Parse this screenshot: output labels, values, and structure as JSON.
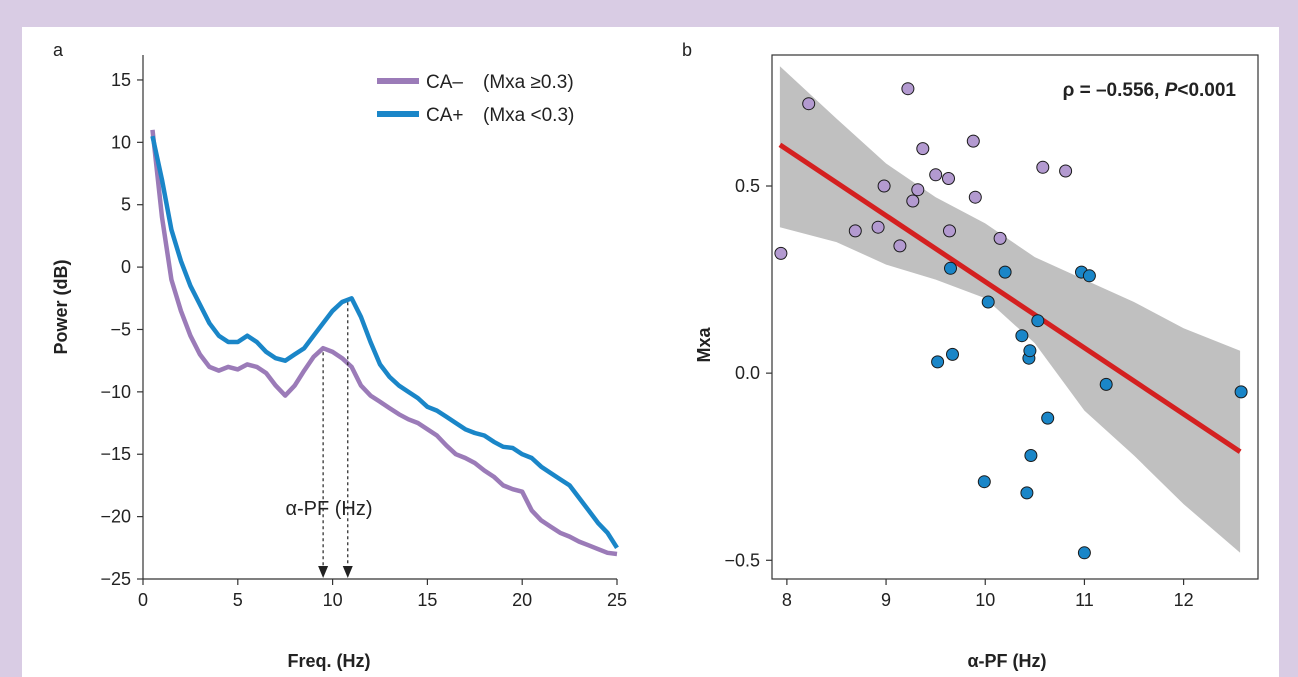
{
  "panel_labels": {
    "a": "a",
    "b": "b"
  },
  "chart_data": [
    {
      "type": "line",
      "xlabel": "Freq. (Hz)",
      "ylabel": "Power (dB)",
      "xlim": [
        0,
        25
      ],
      "ylim": [
        -25,
        17
      ],
      "x_ticks": [
        "0",
        "5",
        "10",
        "15",
        "20",
        "25"
      ],
      "y_ticks": [
        "15",
        "10",
        "5",
        "0",
        "−5",
        "−10",
        "−15",
        "−20",
        "−25"
      ],
      "legend_position": "top-right",
      "annotation": "α-PF (Hz)",
      "peak_markers_x": [
        9.5,
        10.8
      ],
      "series": [
        {
          "name": "CA–",
          "legend_note": "(Mxa ≥0.3)",
          "color": "#9b7bb8",
          "points": [
            [
              0.5,
              11
            ],
            [
              1,
              4
            ],
            [
              1.5,
              -1
            ],
            [
              2,
              -3.5
            ],
            [
              2.5,
              -5.5
            ],
            [
              3,
              -7
            ],
            [
              3.5,
              -8
            ],
            [
              4,
              -8.3
            ],
            [
              4.5,
              -8
            ],
            [
              5,
              -8.2
            ],
            [
              5.5,
              -7.8
            ],
            [
              6,
              -8
            ],
            [
              6.5,
              -8.5
            ],
            [
              7,
              -9.5
            ],
            [
              7.5,
              -10.3
            ],
            [
              8,
              -9.5
            ],
            [
              8.5,
              -8.3
            ],
            [
              9,
              -7.2
            ],
            [
              9.5,
              -6.5
            ],
            [
              10,
              -6.8
            ],
            [
              10.5,
              -7.3
            ],
            [
              11,
              -8
            ],
            [
              11.5,
              -9.5
            ],
            [
              12,
              -10.3
            ],
            [
              12.5,
              -10.8
            ],
            [
              13,
              -11.3
            ],
            [
              13.5,
              -11.8
            ],
            [
              14,
              -12.2
            ],
            [
              14.5,
              -12.5
            ],
            [
              15,
              -13
            ],
            [
              15.5,
              -13.5
            ],
            [
              16,
              -14.3
            ],
            [
              16.5,
              -15
            ],
            [
              17,
              -15.3
            ],
            [
              17.5,
              -15.7
            ],
            [
              18,
              -16.3
            ],
            [
              18.5,
              -16.8
            ],
            [
              19,
              -17.5
            ],
            [
              19.5,
              -17.8
            ],
            [
              20,
              -18
            ],
            [
              20.5,
              -19.5
            ],
            [
              21,
              -20.3
            ],
            [
              21.5,
              -20.8
            ],
            [
              22,
              -21.3
            ],
            [
              22.5,
              -21.6
            ],
            [
              23,
              -22
            ],
            [
              23.5,
              -22.3
            ],
            [
              24,
              -22.6
            ],
            [
              24.5,
              -22.9
            ],
            [
              25,
              -23
            ]
          ]
        },
        {
          "name": "CA+",
          "legend_note": "(Mxa <0.3)",
          "color": "#1a86c8",
          "points": [
            [
              0.5,
              10.5
            ],
            [
              1,
              7
            ],
            [
              1.5,
              3
            ],
            [
              2,
              0.5
            ],
            [
              2.5,
              -1.5
            ],
            [
              3,
              -3
            ],
            [
              3.5,
              -4.5
            ],
            [
              4,
              -5.5
            ],
            [
              4.5,
              -6
            ],
            [
              5,
              -6
            ],
            [
              5.5,
              -5.5
            ],
            [
              6,
              -6
            ],
            [
              6.5,
              -6.8
            ],
            [
              7,
              -7.3
            ],
            [
              7.5,
              -7.5
            ],
            [
              8,
              -7
            ],
            [
              8.5,
              -6.5
            ],
            [
              9,
              -5.5
            ],
            [
              9.5,
              -4.5
            ],
            [
              10,
              -3.5
            ],
            [
              10.5,
              -2.8
            ],
            [
              11,
              -2.5
            ],
            [
              11.5,
              -4
            ],
            [
              12,
              -6
            ],
            [
              12.5,
              -7.8
            ],
            [
              13,
              -8.8
            ],
            [
              13.5,
              -9.5
            ],
            [
              14,
              -10
            ],
            [
              14.5,
              -10.5
            ],
            [
              15,
              -11.2
            ],
            [
              15.5,
              -11.5
            ],
            [
              16,
              -12
            ],
            [
              16.5,
              -12.5
            ],
            [
              17,
              -13
            ],
            [
              17.5,
              -13.3
            ],
            [
              18,
              -13.5
            ],
            [
              18.5,
              -14
            ],
            [
              19,
              -14.4
            ],
            [
              19.5,
              -14.5
            ],
            [
              20,
              -15
            ],
            [
              20.5,
              -15.3
            ],
            [
              21,
              -16
            ],
            [
              21.5,
              -16.5
            ],
            [
              22,
              -17
            ],
            [
              22.5,
              -17.5
            ],
            [
              23,
              -18.5
            ],
            [
              23.5,
              -19.5
            ],
            [
              24,
              -20.5
            ],
            [
              24.5,
              -21.3
            ],
            [
              25,
              -22.5
            ]
          ]
        }
      ]
    },
    {
      "type": "scatter",
      "xlabel": "α-PF (Hz)",
      "ylabel": "Mxa",
      "xlim": [
        7.85,
        12.75
      ],
      "ylim": [
        -0.55,
        0.85
      ],
      "x_ticks": [
        "8",
        "9",
        "10",
        "11",
        "12"
      ],
      "y_ticks": [
        "0.5",
        "0.0",
        "−0.5"
      ],
      "annotation_prefix": "ρ = –0.556, ",
      "annotation_p": "P",
      "annotation_suffix": "<0.001",
      "regression": {
        "color": "#d42020",
        "x": [
          7.93,
          12.57
        ],
        "y": [
          0.61,
          -0.21
        ]
      },
      "confidence_band": {
        "color": "#c0c0c0",
        "upper": [
          [
            7.93,
            0.82
          ],
          [
            8.5,
            0.68
          ],
          [
            9,
            0.56
          ],
          [
            9.5,
            0.47
          ],
          [
            10,
            0.4
          ],
          [
            10.5,
            0.31
          ],
          [
            11,
            0.25
          ],
          [
            11.5,
            0.19
          ],
          [
            12,
            0.12
          ],
          [
            12.57,
            0.06
          ]
        ],
        "lower": [
          [
            7.93,
            0.39
          ],
          [
            8.5,
            0.35
          ],
          [
            9,
            0.29
          ],
          [
            9.5,
            0.25
          ],
          [
            10,
            0.2
          ],
          [
            10.5,
            0.08
          ],
          [
            11,
            -0.1
          ],
          [
            11.5,
            -0.22
          ],
          [
            12,
            -0.35
          ],
          [
            12.57,
            -0.48
          ]
        ]
      },
      "series": [
        {
          "group": "CA–",
          "color": "#b39ad0",
          "points": [
            [
              7.94,
              0.32
            ],
            [
              8.22,
              0.72
            ],
            [
              8.69,
              0.38
            ],
            [
              8.92,
              0.39
            ],
            [
              8.98,
              0.5
            ],
            [
              9.14,
              0.34
            ],
            [
              9.22,
              0.76
            ],
            [
              9.27,
              0.46
            ],
            [
              9.32,
              0.49
            ],
            [
              9.37,
              0.6
            ],
            [
              9.5,
              0.53
            ],
            [
              9.63,
              0.52
            ],
            [
              9.64,
              0.38
            ],
            [
              9.88,
              0.62
            ],
            [
              9.9,
              0.47
            ],
            [
              10.15,
              0.36
            ],
            [
              10.58,
              0.55
            ],
            [
              10.81,
              0.54
            ]
          ]
        },
        {
          "group": "CA+",
          "color": "#1a86c8",
          "points": [
            [
              9.52,
              0.03
            ],
            [
              9.65,
              0.28
            ],
            [
              9.67,
              0.05
            ],
            [
              9.99,
              -0.29
            ],
            [
              10.03,
              0.19
            ],
            [
              10.2,
              0.27
            ],
            [
              10.37,
              0.1
            ],
            [
              10.42,
              -0.32
            ],
            [
              10.44,
              0.04
            ],
            [
              10.45,
              0.06
            ],
            [
              10.46,
              -0.22
            ],
            [
              10.53,
              0.14
            ],
            [
              10.63,
              -0.12
            ],
            [
              10.97,
              0.27
            ],
            [
              11.0,
              -0.48
            ],
            [
              11.05,
              0.26
            ],
            [
              11.22,
              -0.03
            ],
            [
              12.58,
              -0.05
            ]
          ]
        }
      ]
    }
  ]
}
